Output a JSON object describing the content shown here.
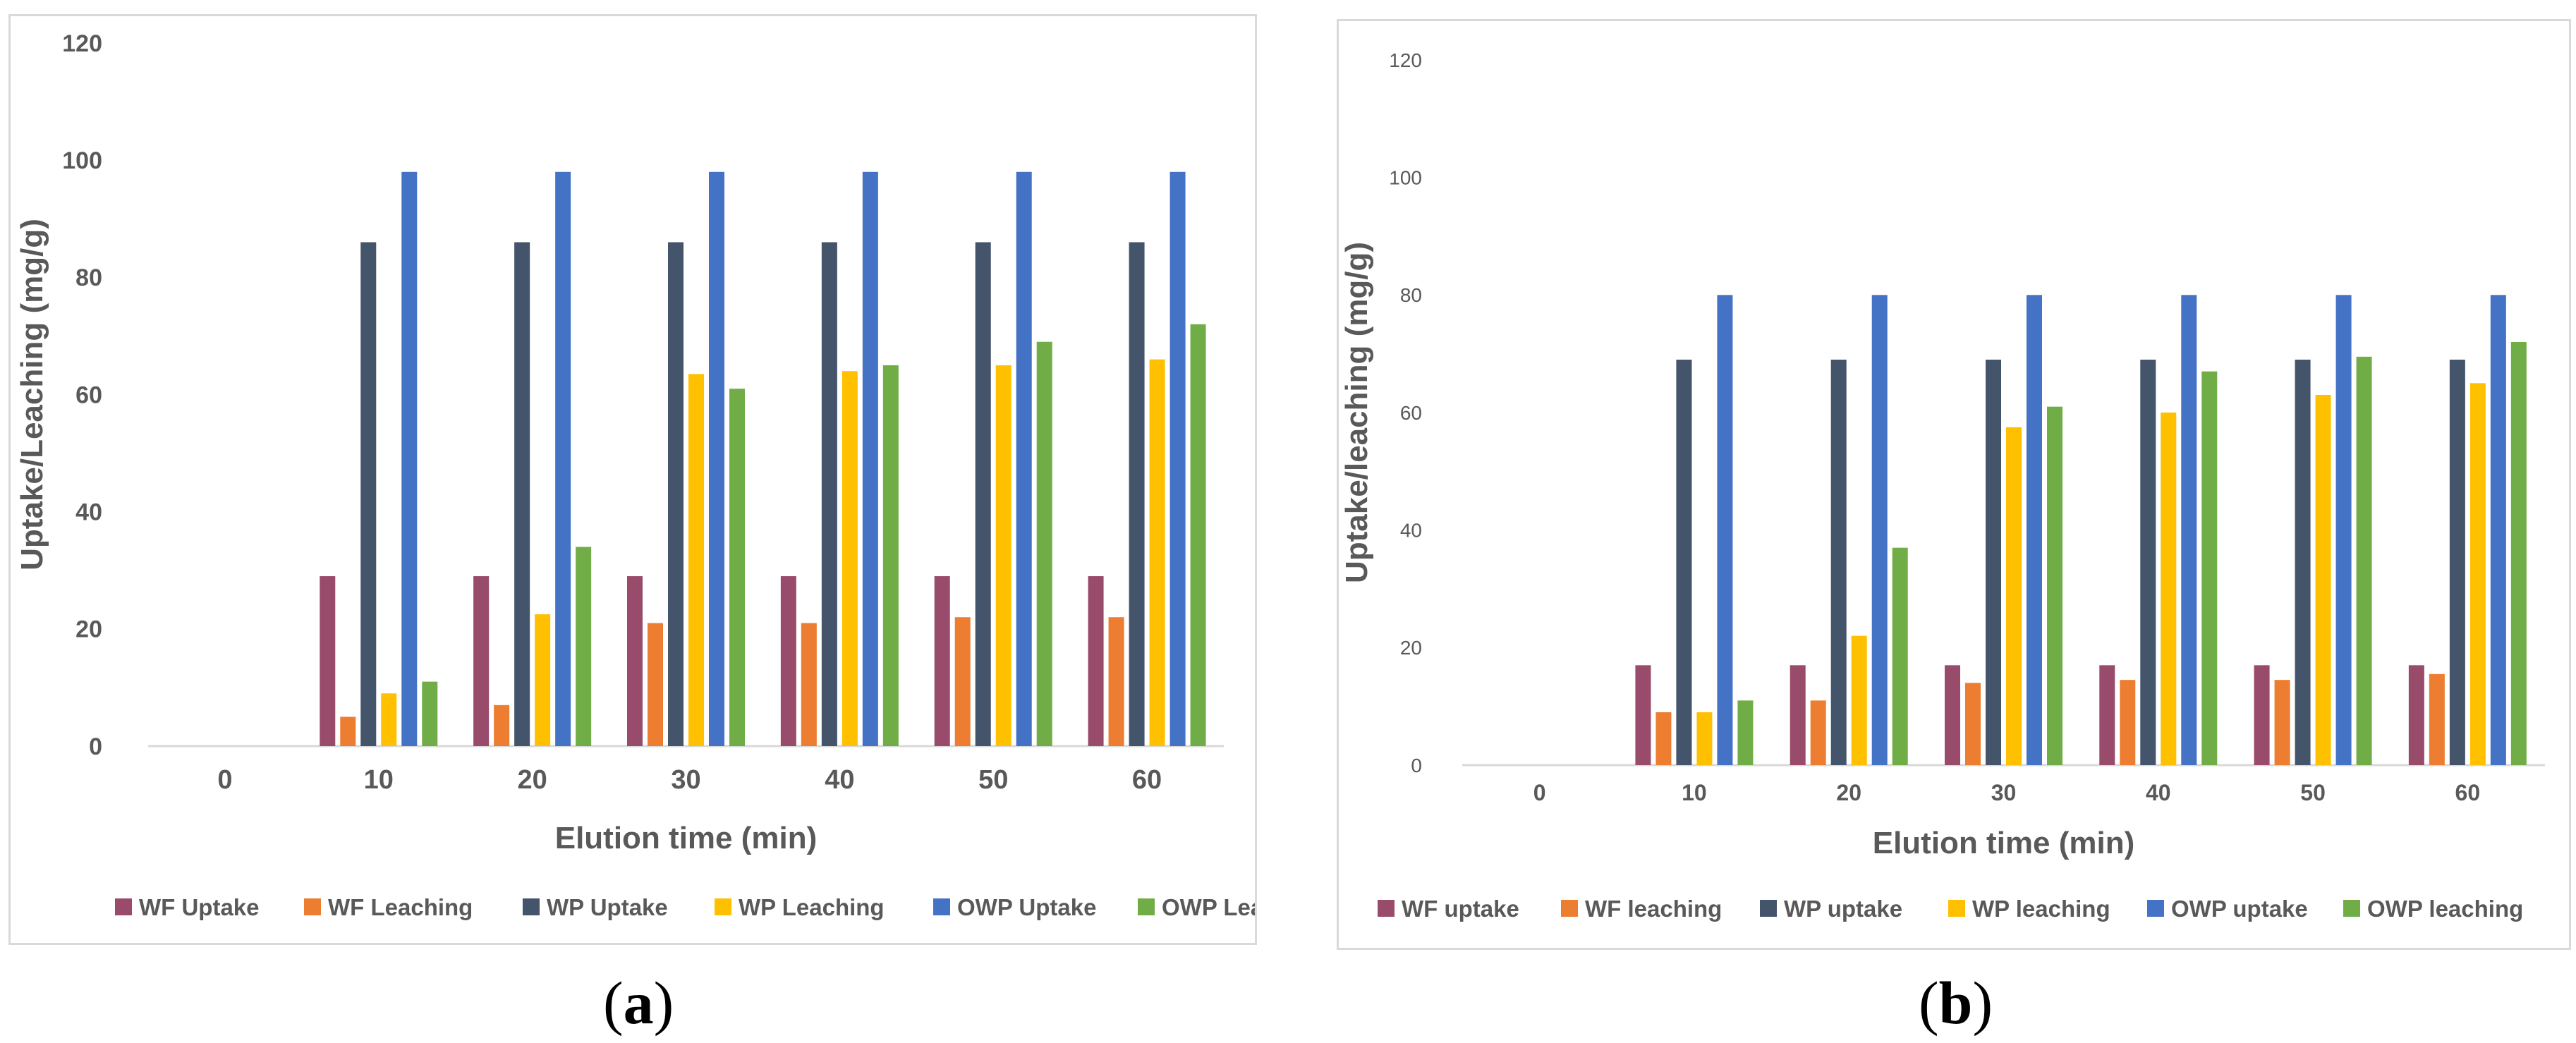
{
  "chart_data": [
    {
      "type": "bar",
      "panel": "a",
      "caption_open": "(",
      "caption_letter": "a",
      "caption_close": ")",
      "title": "",
      "xlabel": "Elution time (min)",
      "ylabel": "Uptake/Leaching (mg/g)",
      "ylim": [
        0,
        120
      ],
      "yticks": [
        0,
        20,
        40,
        60,
        80,
        100,
        120
      ],
      "categories": [
        "0",
        "10",
        "20",
        "30",
        "40",
        "50",
        "60"
      ],
      "legend_position": "bottom",
      "series": [
        {
          "name": "WF Uptake",
          "color": "#984b6a",
          "values": [
            0,
            29,
            29,
            29,
            29,
            29,
            29
          ]
        },
        {
          "name": "WF Leaching",
          "color": "#ed7d31",
          "values": [
            0,
            5,
            7,
            21,
            21,
            22,
            22
          ]
        },
        {
          "name": "WP Uptake",
          "color": "#44546a",
          "values": [
            0,
            86,
            86,
            86,
            86,
            86,
            86
          ]
        },
        {
          "name": "WP Leaching",
          "color": "#ffc000",
          "values": [
            0,
            9,
            22.5,
            63.5,
            64,
            65,
            66
          ]
        },
        {
          "name": "OWP Uptake",
          "color": "#4472c4",
          "values": [
            0,
            98,
            98,
            98,
            98,
            98,
            98
          ]
        },
        {
          "name": "OWP Leaching",
          "color": "#70ad47",
          "values": [
            0,
            11,
            34,
            61,
            65,
            69,
            72
          ]
        }
      ]
    },
    {
      "type": "bar",
      "panel": "b",
      "caption_open": "(",
      "caption_letter": "b",
      "caption_close": ")",
      "title": "",
      "xlabel": "Elution time (min)",
      "ylabel": "Uptake/leaching (mg/g)",
      "ylim": [
        0,
        120
      ],
      "yticks": [
        0,
        20,
        40,
        60,
        80,
        100,
        120
      ],
      "categories": [
        "0",
        "10",
        "20",
        "30",
        "40",
        "50",
        "60"
      ],
      "legend_position": "bottom",
      "series": [
        {
          "name": "WF uptake",
          "color": "#984b6a",
          "values": [
            0,
            17,
            17,
            17,
            17,
            17,
            17
          ]
        },
        {
          "name": "WF leaching",
          "color": "#ed7d31",
          "values": [
            0,
            9,
            11,
            14,
            14.5,
            14.5,
            15.5
          ]
        },
        {
          "name": "WP uptake",
          "color": "#44546a",
          "values": [
            0,
            69,
            69,
            69,
            69,
            69,
            69
          ]
        },
        {
          "name": "WP leaching",
          "color": "#ffc000",
          "values": [
            0,
            9,
            22,
            57.5,
            60,
            63,
            65
          ]
        },
        {
          "name": "OWP uptake",
          "color": "#4472c4",
          "values": [
            0,
            80,
            80,
            80,
            80,
            80,
            80
          ]
        },
        {
          "name": "OWP leaching",
          "color": "#70ad47",
          "values": [
            0,
            11,
            37,
            61,
            67,
            69.5,
            72
          ]
        }
      ]
    }
  ]
}
